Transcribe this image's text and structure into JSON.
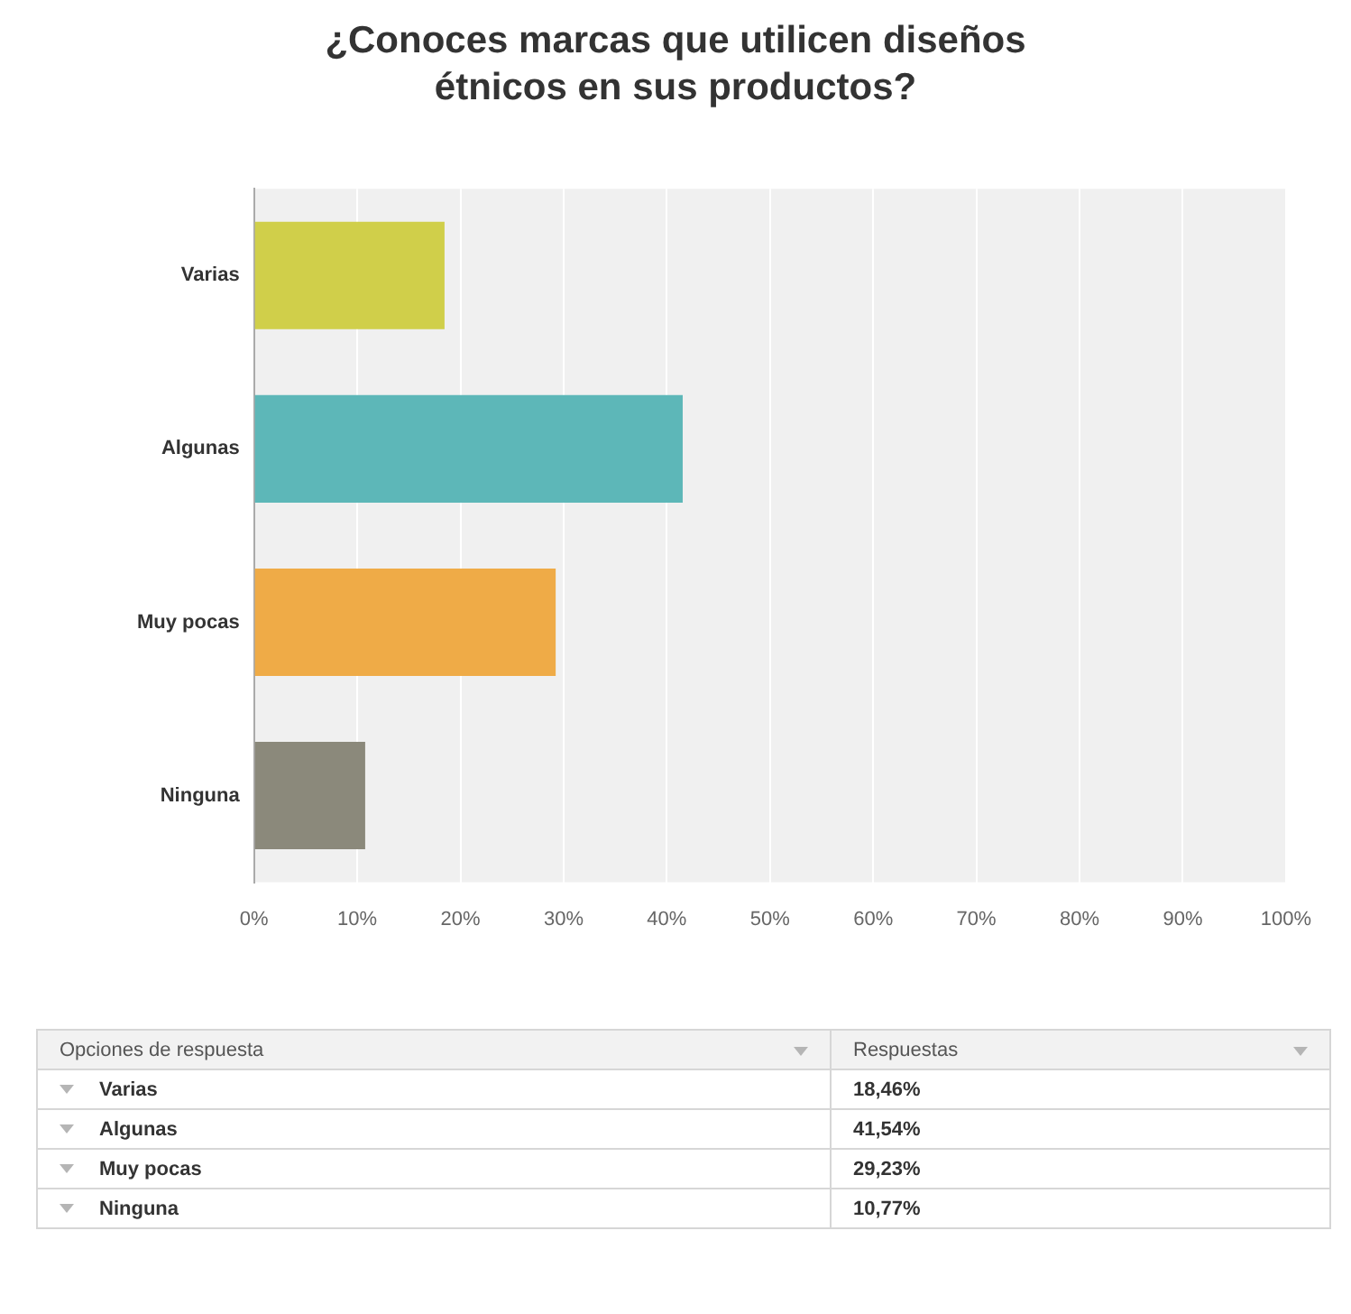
{
  "chart_data": {
    "type": "bar",
    "orientation": "horizontal",
    "title": "¿Conoces marcas que utilicen diseños étnicos en sus productos?",
    "categories": [
      "Varias",
      "Algunas",
      "Muy pocas",
      "Ninguna"
    ],
    "values": [
      18.46,
      41.54,
      29.23,
      10.77
    ],
    "colors": [
      "#d0cf4a",
      "#5db7b8",
      "#efab47",
      "#8b897b"
    ],
    "xlim": [
      0,
      100
    ],
    "xticks": [
      {
        "value": 0,
        "label": "0%"
      },
      {
        "value": 10,
        "label": "10%"
      },
      {
        "value": 20,
        "label": "20%"
      },
      {
        "value": 30,
        "label": "30%"
      },
      {
        "value": 40,
        "label": "40%"
      },
      {
        "value": 50,
        "label": "50%"
      },
      {
        "value": 60,
        "label": "60%"
      },
      {
        "value": 70,
        "label": "70%"
      },
      {
        "value": 80,
        "label": "80%"
      },
      {
        "value": 90,
        "label": "90%"
      },
      {
        "value": 100,
        "label": "100%"
      }
    ],
    "grid": "x",
    "annotations": [
      "Opciones de respuesta",
      "Respuestas",
      "18,46%",
      "41,54%",
      "29,23%",
      "10,77%"
    ]
  }
}
